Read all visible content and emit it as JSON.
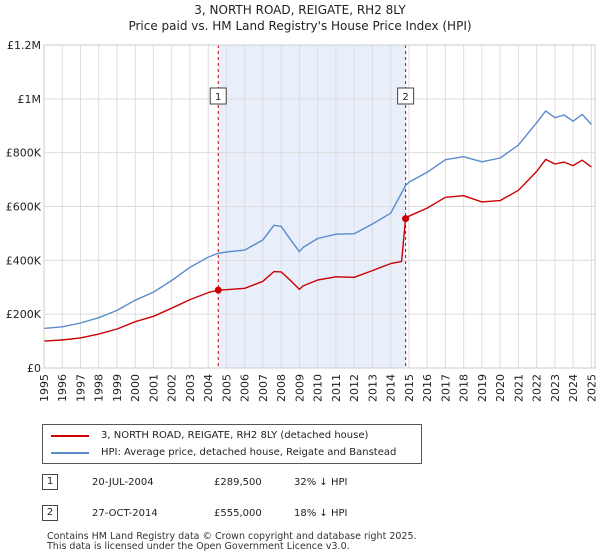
{
  "title_line1": "3, NORTH ROAD, REIGATE, RH2 8LY",
  "title_line2": "Price paid vs. HM Land Registry's House Price Index (HPI)",
  "chart_data": {
    "type": "line",
    "title": "3, NORTH ROAD, REIGATE, RH2 8LY — Price paid vs. HM Land Registry's House Price Index (HPI)",
    "xlabel": "",
    "ylabel": "",
    "xlim": [
      1995,
      2025.2
    ],
    "ylim": [
      0,
      1200000
    ],
    "x_ticks": [
      "1995",
      "1996",
      "1997",
      "1998",
      "1999",
      "2000",
      "2001",
      "2002",
      "2003",
      "2004",
      "2005",
      "2006",
      "2007",
      "2008",
      "2009",
      "2010",
      "2011",
      "2012",
      "2013",
      "2014",
      "2015",
      "2016",
      "2017",
      "2018",
      "2019",
      "2020",
      "2021",
      "2022",
      "2023",
      "2024",
      "2025"
    ],
    "y_ticks": [
      {
        "value": 0,
        "label": "£0"
      },
      {
        "value": 200000,
        "label": "£200K"
      },
      {
        "value": 400000,
        "label": "£400K"
      },
      {
        "value": 600000,
        "label": "£600K"
      },
      {
        "value": 800000,
        "label": "£800K"
      },
      {
        "value": 1000000,
        "label": "£1M"
      },
      {
        "value": 1200000,
        "label": "£1.2M"
      }
    ],
    "grid": true,
    "shaded_region": [
      2004.55,
      2014.82
    ],
    "series": [
      {
        "name": "3, NORTH ROAD, REIGATE, RH2 8LY (detached house)",
        "color": "#cc0000",
        "x": [
          1995,
          1996,
          1997,
          1998,
          1999,
          2000,
          2001,
          2002,
          2003,
          2004,
          2004.55,
          2005,
          2006,
          2007,
          2007.6,
          2008,
          2008.5,
          2009,
          2009.2,
          2010,
          2011,
          2012,
          2013,
          2014,
          2014.6,
          2014.82,
          2015,
          2016,
          2017,
          2018,
          2019,
          2020,
          2021,
          2022,
          2022.5,
          2023,
          2023.5,
          2024,
          2024.5,
          2025
        ],
        "values": [
          100000,
          104000,
          112000,
          126000,
          145000,
          172000,
          192000,
          222000,
          254000,
          280000,
          289500,
          291000,
          296000,
          322000,
          358000,
          357000,
          326000,
          292000,
          305000,
          327000,
          339000,
          337000,
          362000,
          388000,
          396000,
          555000,
          564000,
          594000,
          634000,
          640000,
          617000,
          622000,
          660000,
          730000,
          775000,
          758000,
          765000,
          752000,
          772000,
          747000
        ]
      },
      {
        "name": "HPI: Average price, detached house, Reigate and Banstead",
        "color": "#5b8ccc",
        "x": [
          1995,
          1996,
          1997,
          1998,
          1999,
          2000,
          2001,
          2002,
          2003,
          2004,
          2004.55,
          2005,
          2006,
          2007,
          2007.6,
          2008,
          2008.5,
          2009,
          2009.2,
          2010,
          2011,
          2012,
          2013,
          2014,
          2014.82,
          2015,
          2016,
          2017,
          2018,
          2019,
          2020,
          2021,
          2022,
          2022.5,
          2023,
          2023.5,
          2024,
          2024.5,
          2025
        ],
        "values": [
          147000,
          153000,
          167000,
          187000,
          214000,
          252000,
          282000,
          325000,
          374000,
          412000,
          426000,
          431000,
          438000,
          476000,
          530000,
          526000,
          478000,
          432000,
          448000,
          481000,
          497000,
          499000,
          535000,
          575000,
          678000,
          690000,
          727000,
          774000,
          785000,
          766000,
          780000,
          828000,
          911000,
          955000,
          930000,
          940000,
          917000,
          942000,
          905000
        ]
      }
    ],
    "annotations": [
      {
        "label": "1",
        "x": 2004.55,
        "y": 289500
      },
      {
        "label": "2",
        "x": 2014.82,
        "y": 555000
      }
    ]
  },
  "legend": {
    "property_label": "3, NORTH ROAD, REIGATE, RH2 8LY (detached house)",
    "hpi_label": "HPI: Average price, detached house, Reigate and Banstead",
    "property_color": "#cc0000",
    "hpi_color": "#5b8ccc"
  },
  "sales": [
    {
      "num": "1",
      "date": "20-JUL-2004",
      "price": "£289,500",
      "hpi_diff": "32% ↓ HPI"
    },
    {
      "num": "2",
      "date": "27-OCT-2014",
      "price": "£555,000",
      "hpi_diff": "18% ↓ HPI"
    }
  ],
  "footer": {
    "line1": "Contains HM Land Registry data © Crown copyright and database right 2025.",
    "line2": "This data is licensed under the Open Government Licence v3.0."
  }
}
